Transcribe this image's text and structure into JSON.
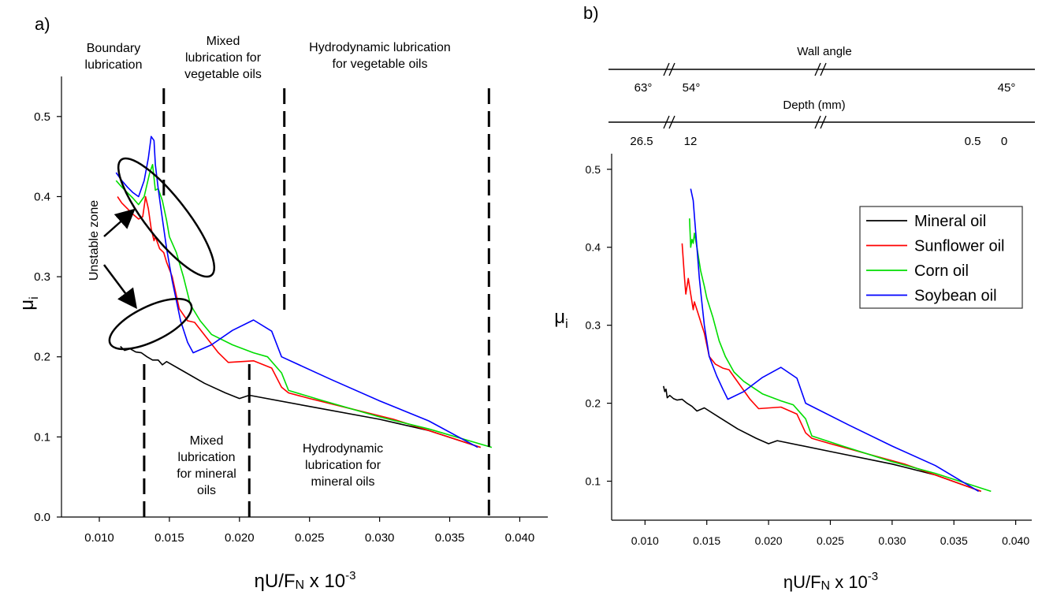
{
  "chart_data": [
    {
      "panel_label": "a)",
      "type": "line",
      "xlabel": "ηU/F",
      "xlabel_sub": "N",
      "xlabel_suffix": " x 10",
      "xlabel_sup": "-3",
      "ylabel": "μ",
      "ylabel_sub": "i",
      "xlim": [
        0.0073,
        0.042
      ],
      "ylim": [
        0.0,
        0.55
      ],
      "xticks": [
        "0.010",
        "0.015",
        "0.020",
        "0.025",
        "0.030",
        "0.035",
        "0.040"
      ],
      "xtick_values": [
        0.01,
        0.015,
        0.02,
        0.025,
        0.03,
        0.035,
        0.04
      ],
      "yticks": [
        "0.0",
        "0.1",
        "0.2",
        "0.3",
        "0.4",
        "0.5"
      ],
      "ytick_values": [
        0.0,
        0.1,
        0.2,
        0.3,
        0.4,
        0.5
      ],
      "series": [
        {
          "name": "Mineral oil",
          "color": "#000000",
          "x": [
            0.0115,
            0.0118,
            0.0122,
            0.0126,
            0.013,
            0.0134,
            0.0138,
            0.0142,
            0.0145,
            0.0148,
            0.016,
            0.0175,
            0.019,
            0.02,
            0.0207,
            0.025,
            0.03,
            0.0335,
            0.0372
          ],
          "y": [
            0.213,
            0.208,
            0.21,
            0.206,
            0.205,
            0.2,
            0.196,
            0.196,
            0.19,
            0.194,
            0.182,
            0.167,
            0.155,
            0.148,
            0.152,
            0.138,
            0.122,
            0.108,
            0.087
          ]
        },
        {
          "name": "Sunflower oil",
          "color": "#ff0000",
          "x": [
            0.0113,
            0.0116,
            0.012,
            0.0124,
            0.0128,
            0.0131,
            0.0133,
            0.0135,
            0.0137,
            0.0139,
            0.014,
            0.0143,
            0.0146,
            0.0148,
            0.0152,
            0.0157,
            0.0163,
            0.0168,
            0.0185,
            0.0192,
            0.021,
            0.0223,
            0.023,
            0.0235,
            0.025,
            0.028,
            0.031,
            0.0335,
            0.0372
          ],
          "y": [
            0.4,
            0.392,
            0.385,
            0.378,
            0.372,
            0.375,
            0.4,
            0.385,
            0.36,
            0.345,
            0.35,
            0.335,
            0.33,
            0.318,
            0.3,
            0.26,
            0.245,
            0.243,
            0.205,
            0.193,
            0.195,
            0.186,
            0.162,
            0.155,
            0.148,
            0.135,
            0.122,
            0.108,
            0.087
          ]
        },
        {
          "name": "Corn oil",
          "color": "#00dd00",
          "x": [
            0.0112,
            0.0116,
            0.012,
            0.0124,
            0.0128,
            0.0132,
            0.0136,
            0.0138,
            0.014,
            0.0142,
            0.0145,
            0.0148,
            0.015,
            0.0155,
            0.016,
            0.0165,
            0.0172,
            0.018,
            0.0195,
            0.021,
            0.022,
            0.023,
            0.0235,
            0.026,
            0.03,
            0.0335,
            0.038
          ],
          "y": [
            0.42,
            0.412,
            0.405,
            0.398,
            0.39,
            0.4,
            0.43,
            0.44,
            0.408,
            0.41,
            0.395,
            0.37,
            0.35,
            0.33,
            0.3,
            0.265,
            0.245,
            0.228,
            0.215,
            0.205,
            0.2,
            0.18,
            0.158,
            0.145,
            0.125,
            0.11,
            0.087
          ]
        },
        {
          "name": "Soybean oil",
          "color": "#0000ff",
          "x": [
            0.0112,
            0.0116,
            0.012,
            0.0124,
            0.0128,
            0.0132,
            0.0135,
            0.0137,
            0.0139,
            0.014,
            0.0142,
            0.0144,
            0.0146,
            0.0148,
            0.0152,
            0.0158,
            0.0163,
            0.0167,
            0.018,
            0.0195,
            0.021,
            0.0223,
            0.023,
            0.0265,
            0.03,
            0.0335,
            0.037
          ],
          "y": [
            0.43,
            0.42,
            0.412,
            0.405,
            0.4,
            0.42,
            0.448,
            0.475,
            0.47,
            0.44,
            0.41,
            0.385,
            0.36,
            0.335,
            0.295,
            0.245,
            0.218,
            0.205,
            0.215,
            0.233,
            0.246,
            0.232,
            0.2,
            0.172,
            0.145,
            0.12,
            0.087
          ]
        }
      ],
      "annotations": [
        {
          "lines": [
            "Boundary",
            "lubrication"
          ]
        },
        {
          "lines": [
            "Mixed",
            "lubrication for",
            "vegetable oils"
          ]
        },
        {
          "lines": [
            "Hydrodynamic lubrication",
            "for vegetable  oils"
          ]
        },
        {
          "lines": [
            "Mixed",
            "lubrication",
            "for mineral",
            "oils"
          ]
        },
        {
          "lines": [
            "Hydrodynamic",
            "lubrication for",
            "mineral oils"
          ]
        },
        {
          "lines": [
            "Unstable  zone"
          ]
        }
      ],
      "regime_boundaries_upper": [
        0.0146,
        0.0232,
        0.0378
      ],
      "regime_boundaries_lower": [
        0.0132,
        0.0207,
        0.0378
      ]
    },
    {
      "panel_label": "b)",
      "type": "line",
      "xlabel": "ηU/F",
      "xlabel_sub": "N",
      "xlabel_suffix": " x 10",
      "xlabel_sup": "-3",
      "ylabel": "μ",
      "ylabel_sub": "i",
      "xlim": [
        0.0073,
        0.0413
      ],
      "ylim": [
        0.05,
        0.52
      ],
      "xticks": [
        "0.010",
        "0.015",
        "0.020",
        "0.025",
        "0.030",
        "0.035",
        "0.040"
      ],
      "xtick_values": [
        0.01,
        0.015,
        0.02,
        0.025,
        0.03,
        0.035,
        0.04
      ],
      "yticks": [
        "0.1",
        "0.2",
        "0.3",
        "0.4",
        "0.5"
      ],
      "ytick_values": [
        0.1,
        0.2,
        0.3,
        0.4,
        0.5
      ],
      "legend": {
        "position": "top-right",
        "entries": [
          "Mineral oil",
          "Sunflower oil",
          "Corn oil",
          "Soybean oil"
        ]
      },
      "secondary_axes": [
        {
          "label": "Wall angle",
          "ticks": [
            "63°",
            "54°",
            "45°"
          ]
        },
        {
          "label": "Depth (mm)",
          "ticks": [
            "26.5",
            "12",
            "0.5",
            "0"
          ]
        }
      ],
      "series": [
        {
          "name": "Mineral oil",
          "color": "#000000",
          "x": [
            0.0115,
            0.0116,
            0.0117,
            0.0118,
            0.012,
            0.0123,
            0.0126,
            0.013,
            0.0134,
            0.0138,
            0.0142,
            0.0145,
            0.0148,
            0.016,
            0.0175,
            0.019,
            0.02,
            0.0207,
            0.025,
            0.03,
            0.0335,
            0.0372
          ],
          "y": [
            0.222,
            0.215,
            0.218,
            0.207,
            0.21,
            0.206,
            0.204,
            0.205,
            0.2,
            0.196,
            0.19,
            0.192,
            0.194,
            0.182,
            0.167,
            0.155,
            0.148,
            0.152,
            0.138,
            0.122,
            0.108,
            0.087
          ]
        },
        {
          "name": "Sunflower oil",
          "color": "#ff0000",
          "x": [
            0.013,
            0.0132,
            0.0133,
            0.0135,
            0.0137,
            0.0139,
            0.014,
            0.0143,
            0.0146,
            0.0148,
            0.0152,
            0.0157,
            0.0163,
            0.0168,
            0.0185,
            0.0192,
            0.021,
            0.0223,
            0.023,
            0.0235,
            0.025,
            0.028,
            0.031,
            0.0335,
            0.0372
          ],
          "y": [
            0.405,
            0.36,
            0.34,
            0.36,
            0.34,
            0.32,
            0.33,
            0.315,
            0.3,
            0.29,
            0.26,
            0.25,
            0.245,
            0.243,
            0.205,
            0.193,
            0.195,
            0.186,
            0.162,
            0.155,
            0.148,
            0.135,
            0.122,
            0.108,
            0.087
          ]
        },
        {
          "name": "Corn oil",
          "color": "#00dd00",
          "x": [
            0.0136,
            0.0137,
            0.0138,
            0.0139,
            0.014,
            0.0142,
            0.0145,
            0.0148,
            0.015,
            0.0155,
            0.016,
            0.0165,
            0.0172,
            0.018,
            0.0195,
            0.021,
            0.022,
            0.023,
            0.0235,
            0.026,
            0.03,
            0.0335,
            0.038
          ],
          "y": [
            0.437,
            0.4,
            0.41,
            0.405,
            0.418,
            0.4,
            0.37,
            0.35,
            0.335,
            0.31,
            0.28,
            0.26,
            0.24,
            0.228,
            0.212,
            0.203,
            0.198,
            0.18,
            0.158,
            0.145,
            0.125,
            0.11,
            0.087
          ]
        },
        {
          "name": "Soybean oil",
          "color": "#0000ff",
          "x": [
            0.0137,
            0.0139,
            0.014,
            0.0142,
            0.0144,
            0.0146,
            0.0148,
            0.0152,
            0.0158,
            0.0163,
            0.0167,
            0.018,
            0.0195,
            0.021,
            0.0223,
            0.023,
            0.0265,
            0.03,
            0.0335,
            0.037
          ],
          "y": [
            0.475,
            0.46,
            0.44,
            0.4,
            0.36,
            0.33,
            0.3,
            0.26,
            0.235,
            0.218,
            0.205,
            0.215,
            0.233,
            0.246,
            0.232,
            0.2,
            0.172,
            0.145,
            0.12,
            0.087
          ]
        }
      ]
    }
  ]
}
